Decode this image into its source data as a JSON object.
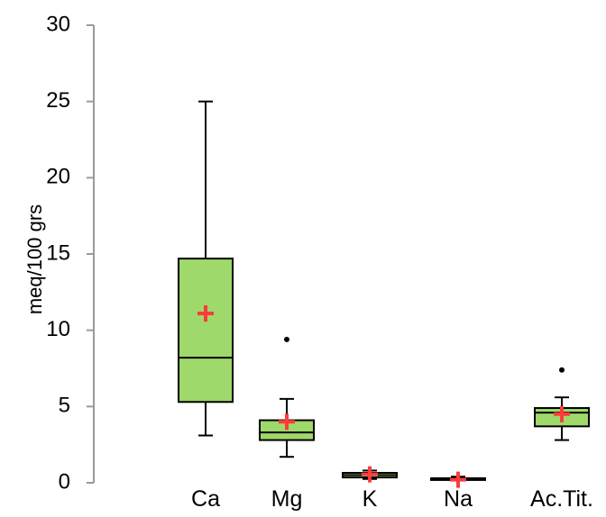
{
  "chart_data": {
    "type": "box",
    "title": "",
    "xlabel": "",
    "ylabel": "meq/100 grs",
    "ylim": [
      0,
      30
    ],
    "yticks": [
      0,
      5,
      10,
      15,
      20,
      25,
      30
    ],
    "categories": [
      "Ca",
      "Mg",
      "K",
      "Na",
      "Ac.Tit."
    ],
    "boxes": [
      {
        "category": "Ca",
        "min": 3.1,
        "q1": 5.3,
        "median": 8.2,
        "q3": 14.7,
        "max": 25.0,
        "mean": 11.1,
        "outliers": []
      },
      {
        "category": "Mg",
        "min": 1.7,
        "q1": 2.8,
        "median": 3.3,
        "q3": 4.1,
        "max": 5.5,
        "mean": 4.0,
        "outliers": [
          9.4
        ]
      },
      {
        "category": "K",
        "min": 0.25,
        "q1": 0.35,
        "median": 0.5,
        "q3": 0.65,
        "max": 0.8,
        "mean": 0.55,
        "outliers": []
      },
      {
        "category": "Na",
        "min": 0.15,
        "q1": 0.2,
        "median": 0.25,
        "q3": 0.3,
        "max": 0.4,
        "mean": 0.2,
        "outliers": []
      },
      {
        "category": "Ac.Tit.",
        "min": 2.8,
        "q1": 3.7,
        "median": 4.6,
        "q3": 4.9,
        "max": 5.6,
        "mean": 4.5,
        "outliers": [
          7.4
        ]
      }
    ],
    "colors": {
      "box_fill": "#9fd86b",
      "box_stroke": "#000000",
      "axis": "#9a9a9a",
      "mean_marker": "#ff3b3b",
      "outlier": "#000000"
    },
    "grid": false,
    "legend": "none"
  }
}
